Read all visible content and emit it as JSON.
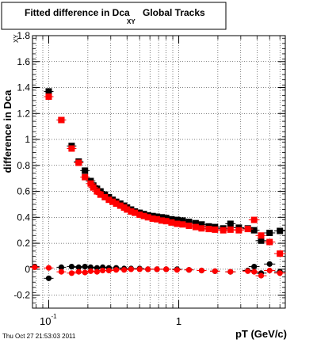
{
  "chart_data": {
    "type": "scatter",
    "title_prefix": "Fitted difference in Dca",
    "title_sub": "XY",
    "title_suffix": "Global Tracks",
    "ylabel_prefix": "difference in Dca",
    "ylabel_sub": "XY",
    "xlabel": "pT (GeV/c)",
    "timestamp": "Thu Oct 27 21:53:03 2011",
    "x_scale": "log",
    "xlim": [
      0.075,
      6.6
    ],
    "ylim": [
      -0.3,
      1.8
    ],
    "grid": true,
    "y_ticks": [
      {
        "v": -0.2,
        "label": "-0.2"
      },
      {
        "v": 0,
        "label": "0"
      },
      {
        "v": 0.2,
        "label": "0.2"
      },
      {
        "v": 0.4,
        "label": "0.4"
      },
      {
        "v": 0.6,
        "label": "0.6"
      },
      {
        "v": 0.8,
        "label": "0.8"
      },
      {
        "v": 1,
        "label": "1"
      },
      {
        "v": 1.2,
        "label": "1.2"
      },
      {
        "v": 1.4,
        "label": "1.4"
      },
      {
        "v": 1.6,
        "label": "1.6"
      },
      {
        "v": 1.8,
        "label": "1.8"
      }
    ],
    "x_ticks": [
      {
        "v": 0.1,
        "base": "10",
        "exp": "-1"
      },
      {
        "v": 1,
        "label": "1"
      }
    ],
    "colors": {
      "black": "#000000",
      "red": "#ff0000"
    },
    "series": [
      {
        "color": "black",
        "marker": "square",
        "points": [
          [
            0.1,
            1.37
          ],
          [
            0.125,
            1.15
          ],
          [
            0.15,
            0.95
          ],
          [
            0.17,
            0.83
          ],
          [
            0.19,
            0.76
          ],
          [
            0.21,
            0.68
          ],
          [
            0.22,
            0.645
          ],
          [
            0.235,
            0.62
          ],
          [
            0.25,
            0.6
          ],
          [
            0.27,
            0.575
          ],
          [
            0.29,
            0.555
          ],
          [
            0.31,
            0.535
          ],
          [
            0.33,
            0.52
          ],
          [
            0.355,
            0.505
          ],
          [
            0.38,
            0.49
          ],
          [
            0.4,
            0.475
          ],
          [
            0.43,
            0.46
          ],
          [
            0.46,
            0.445
          ],
          [
            0.5,
            0.435
          ],
          [
            0.54,
            0.425
          ],
          [
            0.58,
            0.415
          ],
          [
            0.63,
            0.41
          ],
          [
            0.68,
            0.405
          ],
          [
            0.74,
            0.4
          ],
          [
            0.8,
            0.395
          ],
          [
            0.88,
            0.385
          ],
          [
            0.97,
            0.38
          ],
          [
            1.07,
            0.375
          ],
          [
            1.2,
            0.365
          ],
          [
            1.35,
            0.355
          ],
          [
            1.5,
            0.345
          ],
          [
            1.7,
            0.33
          ],
          [
            1.9,
            0.325
          ],
          [
            2.2,
            0.315
          ],
          [
            2.5,
            0.35
          ],
          [
            2.9,
            0.32
          ],
          [
            3.4,
            0.315
          ],
          [
            3.8,
            0.3
          ],
          [
            4.3,
            0.22
          ],
          [
            5.0,
            0.28
          ],
          [
            6.0,
            0.295
          ]
        ]
      },
      {
        "color": "red",
        "marker": "square",
        "points": [
          [
            0.1,
            1.33
          ],
          [
            0.125,
            1.15
          ],
          [
            0.15,
            0.93
          ],
          [
            0.17,
            0.82
          ],
          [
            0.19,
            0.71
          ],
          [
            0.21,
            0.66
          ],
          [
            0.22,
            0.63
          ],
          [
            0.235,
            0.6
          ],
          [
            0.25,
            0.575
          ],
          [
            0.27,
            0.555
          ],
          [
            0.29,
            0.535
          ],
          [
            0.31,
            0.52
          ],
          [
            0.33,
            0.505
          ],
          [
            0.355,
            0.49
          ],
          [
            0.38,
            0.475
          ],
          [
            0.4,
            0.46
          ],
          [
            0.43,
            0.445
          ],
          [
            0.46,
            0.435
          ],
          [
            0.5,
            0.42
          ],
          [
            0.54,
            0.41
          ],
          [
            0.58,
            0.4
          ],
          [
            0.63,
            0.39
          ],
          [
            0.68,
            0.385
          ],
          [
            0.74,
            0.375
          ],
          [
            0.8,
            0.37
          ],
          [
            0.88,
            0.36
          ],
          [
            0.97,
            0.35
          ],
          [
            1.07,
            0.345
          ],
          [
            1.2,
            0.335
          ],
          [
            1.35,
            0.325
          ],
          [
            1.5,
            0.315
          ],
          [
            1.7,
            0.31
          ],
          [
            1.9,
            0.305
          ],
          [
            2.2,
            0.3
          ],
          [
            2.5,
            0.305
          ],
          [
            2.9,
            0.3
          ],
          [
            3.4,
            0.31
          ],
          [
            3.8,
            0.38
          ],
          [
            4.3,
            0.26
          ],
          [
            5.0,
            0.21
          ],
          [
            6.0,
            0.12
          ]
        ]
      },
      {
        "color": "black",
        "marker": "circle",
        "points": [
          [
            0.078,
            0.02
          ],
          [
            0.1,
            -0.07
          ],
          [
            0.125,
            0.015
          ],
          [
            0.15,
            0.02
          ],
          [
            0.17,
            0.015
          ],
          [
            0.19,
            0.02
          ],
          [
            0.21,
            0.015
          ],
          [
            0.235,
            0.01
          ],
          [
            0.26,
            0.015
          ],
          [
            0.29,
            0.01
          ],
          [
            0.33,
            0.01
          ],
          [
            0.38,
            0.005
          ],
          [
            0.43,
            0.005
          ],
          [
            0.5,
            0.005
          ],
          [
            0.58,
            0.0
          ],
          [
            0.68,
            0.0
          ],
          [
            0.8,
            0.0
          ],
          [
            0.97,
            0.0
          ],
          [
            1.2,
            -0.005
          ],
          [
            1.5,
            -0.01
          ],
          [
            1.9,
            -0.015
          ],
          [
            2.5,
            -0.02
          ],
          [
            3.4,
            -0.01
          ],
          [
            3.8,
            0.02
          ],
          [
            4.3,
            -0.03
          ],
          [
            5.0,
            0.04
          ],
          [
            6.0,
            -0.02
          ]
        ]
      },
      {
        "color": "red",
        "marker": "circle",
        "points": [
          [
            0.078,
            0.015
          ],
          [
            0.1,
            0.01
          ],
          [
            0.125,
            -0.02
          ],
          [
            0.15,
            -0.03
          ],
          [
            0.17,
            -0.02
          ],
          [
            0.19,
            -0.025
          ],
          [
            0.21,
            -0.015
          ],
          [
            0.235,
            -0.02
          ],
          [
            0.26,
            -0.01
          ],
          [
            0.29,
            -0.01
          ],
          [
            0.33,
            -0.005
          ],
          [
            0.38,
            -0.005
          ],
          [
            0.43,
            0.0
          ],
          [
            0.5,
            0.0
          ],
          [
            0.58,
            0.0
          ],
          [
            0.68,
            0.0
          ],
          [
            0.8,
            0.0
          ],
          [
            0.97,
            -0.005
          ],
          [
            1.2,
            -0.005
          ],
          [
            1.5,
            -0.01
          ],
          [
            1.9,
            -0.015
          ],
          [
            2.5,
            -0.02
          ],
          [
            3.4,
            -0.015
          ],
          [
            3.8,
            -0.02
          ],
          [
            4.3,
            -0.05
          ],
          [
            5.0,
            -0.01
          ],
          [
            6.0,
            -0.03
          ]
        ]
      }
    ]
  }
}
